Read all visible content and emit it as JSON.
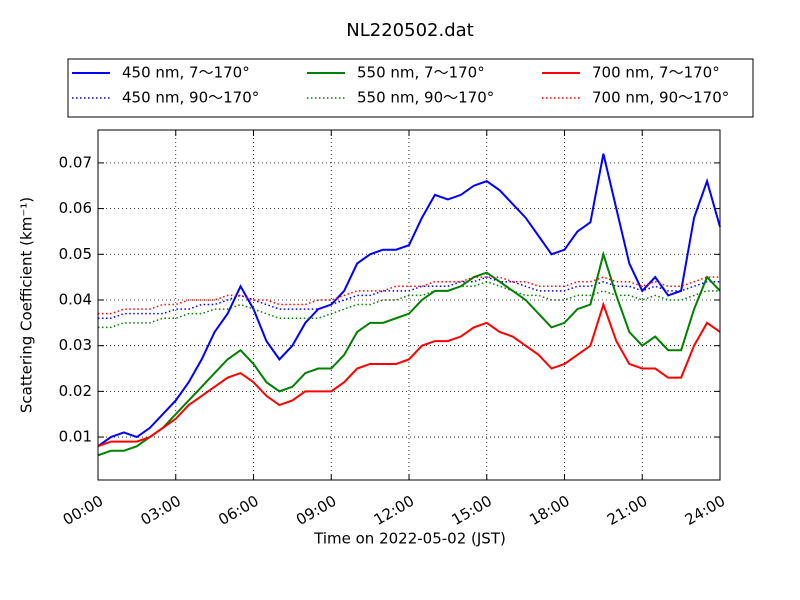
{
  "chart_data": {
    "type": "line",
    "title": "NL220502.dat",
    "x_label": "Time on 2022-05-02 (JST)",
    "y_label": "Scattering Coefficient (km⁻¹)",
    "xlim": [
      0,
      24
    ],
    "xticks": [
      {
        "value": 0,
        "label": "00:00"
      },
      {
        "value": 3,
        "label": "03:00"
      },
      {
        "value": 6,
        "label": "06:00"
      },
      {
        "value": 9,
        "label": "09:00"
      },
      {
        "value": 12,
        "label": "12:00"
      },
      {
        "value": 15,
        "label": "15:00"
      },
      {
        "value": 18,
        "label": "18:00"
      },
      {
        "value": 21,
        "label": "21:00"
      },
      {
        "value": 24,
        "label": "24:00"
      }
    ],
    "ylim": [
      0.0006,
      0.0772
    ],
    "yticks": [
      0.01,
      0.02,
      0.03,
      0.04,
      0.05,
      0.06,
      0.07
    ],
    "grid": true,
    "legend": "top",
    "x": [
      0,
      0.5,
      1,
      1.5,
      2,
      2.5,
      3,
      3.5,
      4,
      4.5,
      5,
      5.5,
      6,
      6.5,
      7,
      7.5,
      8,
      8.5,
      9,
      9.5,
      10,
      10.5,
      11,
      11.5,
      12,
      12.5,
      13,
      13.5,
      14,
      14.5,
      15,
      15.5,
      16,
      16.5,
      17,
      17.5,
      18,
      18.5,
      19,
      19.5,
      20,
      20.5,
      21,
      21.5,
      22,
      22.5,
      23,
      23.5,
      24
    ],
    "series": [
      {
        "name": "450 nm, 7～170°",
        "color": "#0000ff",
        "linestyle": "solid",
        "values": [
          0.008,
          0.01,
          0.011,
          0.01,
          0.012,
          0.015,
          0.018,
          0.022,
          0.027,
          0.033,
          0.037,
          0.043,
          0.038,
          0.031,
          0.027,
          0.03,
          0.035,
          0.038,
          0.039,
          0.042,
          0.048,
          0.05,
          0.051,
          0.051,
          0.052,
          0.058,
          0.063,
          0.062,
          0.063,
          0.065,
          0.066,
          0.064,
          0.061,
          0.058,
          0.054,
          0.05,
          0.051,
          0.055,
          0.057,
          0.072,
          0.06,
          0.048,
          0.042,
          0.045,
          0.041,
          0.042,
          0.058,
          0.066,
          0.056
        ]
      },
      {
        "name": "450 nm, 90～170°",
        "color": "#0000ff",
        "linestyle": "dotted",
        "values": [
          0.036,
          0.036,
          0.037,
          0.037,
          0.037,
          0.037,
          0.038,
          0.038,
          0.039,
          0.039,
          0.04,
          0.041,
          0.04,
          0.039,
          0.038,
          0.038,
          0.038,
          0.038,
          0.039,
          0.04,
          0.041,
          0.041,
          0.042,
          0.042,
          0.042,
          0.043,
          0.043,
          0.043,
          0.044,
          0.044,
          0.045,
          0.044,
          0.044,
          0.043,
          0.042,
          0.042,
          0.042,
          0.043,
          0.043,
          0.044,
          0.043,
          0.043,
          0.042,
          0.043,
          0.042,
          0.042,
          0.043,
          0.044,
          0.044
        ]
      },
      {
        "name": "550 nm, 7～170°",
        "color": "#008000",
        "linestyle": "solid",
        "values": [
          0.006,
          0.007,
          0.007,
          0.008,
          0.01,
          0.012,
          0.015,
          0.018,
          0.021,
          0.024,
          0.027,
          0.029,
          0.026,
          0.022,
          0.02,
          0.021,
          0.024,
          0.025,
          0.025,
          0.028,
          0.033,
          0.035,
          0.035,
          0.036,
          0.037,
          0.04,
          0.042,
          0.042,
          0.043,
          0.045,
          0.046,
          0.044,
          0.042,
          0.04,
          0.037,
          0.034,
          0.035,
          0.038,
          0.039,
          0.05,
          0.041,
          0.033,
          0.03,
          0.032,
          0.029,
          0.029,
          0.038,
          0.045,
          0.042
        ]
      },
      {
        "name": "550 nm, 90～170°",
        "color": "#008000",
        "linestyle": "dotted",
        "values": [
          0.034,
          0.034,
          0.035,
          0.035,
          0.035,
          0.036,
          0.036,
          0.037,
          0.037,
          0.038,
          0.038,
          0.039,
          0.038,
          0.037,
          0.036,
          0.036,
          0.036,
          0.036,
          0.037,
          0.038,
          0.039,
          0.039,
          0.04,
          0.04,
          0.041,
          0.041,
          0.042,
          0.042,
          0.043,
          0.043,
          0.044,
          0.043,
          0.042,
          0.041,
          0.041,
          0.04,
          0.04,
          0.041,
          0.041,
          0.042,
          0.041,
          0.041,
          0.04,
          0.041,
          0.04,
          0.04,
          0.041,
          0.042,
          0.042
        ]
      },
      {
        "name": "700 nm, 7～170°",
        "color": "#ff0000",
        "linestyle": "solid",
        "values": [
          0.008,
          0.009,
          0.009,
          0.009,
          0.01,
          0.012,
          0.014,
          0.017,
          0.019,
          0.021,
          0.023,
          0.024,
          0.022,
          0.019,
          0.017,
          0.018,
          0.02,
          0.02,
          0.02,
          0.022,
          0.025,
          0.026,
          0.026,
          0.026,
          0.027,
          0.03,
          0.031,
          0.031,
          0.032,
          0.034,
          0.035,
          0.033,
          0.032,
          0.03,
          0.028,
          0.025,
          0.026,
          0.028,
          0.03,
          0.039,
          0.031,
          0.026,
          0.025,
          0.025,
          0.023,
          0.023,
          0.03,
          0.035,
          0.033
        ]
      },
      {
        "name": "700 nm, 90～170°",
        "color": "#ff0000",
        "linestyle": "dotted",
        "values": [
          0.037,
          0.037,
          0.038,
          0.038,
          0.038,
          0.039,
          0.039,
          0.04,
          0.04,
          0.04,
          0.041,
          0.041,
          0.04,
          0.04,
          0.039,
          0.039,
          0.039,
          0.04,
          0.04,
          0.041,
          0.042,
          0.042,
          0.042,
          0.043,
          0.043,
          0.043,
          0.044,
          0.044,
          0.044,
          0.045,
          0.045,
          0.045,
          0.044,
          0.044,
          0.043,
          0.043,
          0.043,
          0.044,
          0.044,
          0.045,
          0.044,
          0.044,
          0.043,
          0.044,
          0.043,
          0.043,
          0.044,
          0.045,
          0.045
        ]
      }
    ]
  }
}
